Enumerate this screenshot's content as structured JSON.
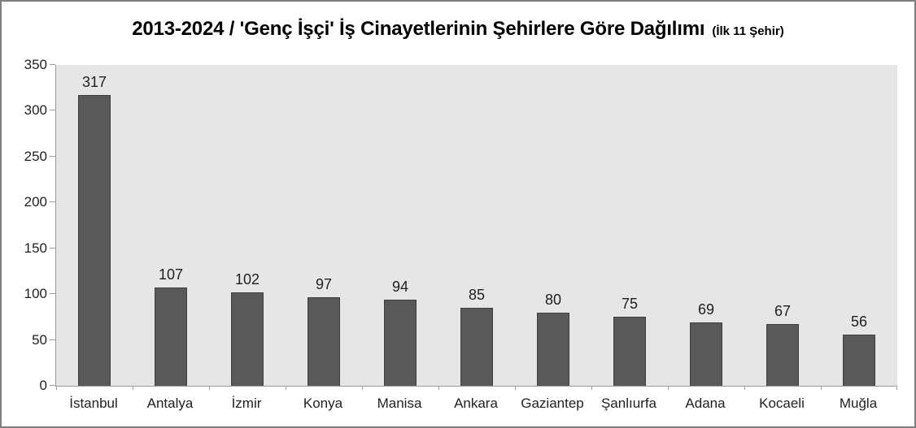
{
  "chart_data": {
    "type": "bar",
    "title": "2013-2024 / 'Genç İşçi' İş Cinayetlerinin Şehirlere Göre Dağılımı",
    "subtitle": "(İlk 11 Şehir)",
    "categories": [
      "İstanbul",
      "Antalya",
      "İzmir",
      "Konya",
      "Manisa",
      "Ankara",
      "Gaziantep",
      "Şanlıurfa",
      "Adana",
      "Kocaeli",
      "Muğla"
    ],
    "values": [
      317,
      107,
      102,
      97,
      94,
      85,
      80,
      75,
      69,
      67,
      56
    ],
    "xlabel": "",
    "ylabel": "",
    "ylim": [
      0,
      350
    ],
    "y_ticks": [
      0,
      50,
      100,
      150,
      200,
      250,
      300,
      350
    ],
    "grid": false,
    "legend": "none",
    "data_labels": true,
    "colors": {
      "bar_fill": "#595959",
      "bar_border": "#3f3f3f",
      "plot_bg": "#e6e6e6",
      "axis_line": "#9a9a9a",
      "label_text": "#1f1f1f",
      "frame_border": "#7f7f7f"
    }
  }
}
